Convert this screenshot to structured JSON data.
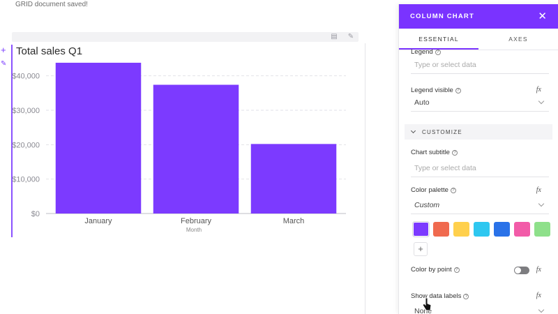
{
  "document": {
    "status": "GRID document saved!",
    "chart_title": "Total sales Q1",
    "x_axis_label": "Month"
  },
  "chart_data": {
    "type": "bar",
    "title": "Total sales Q1",
    "categories": [
      "January",
      "February",
      "March"
    ],
    "values": [
      43800,
      37400,
      20200
    ],
    "ylim": [
      0,
      45000
    ],
    "yticks": [
      0,
      10000,
      20000,
      30000,
      40000
    ],
    "ytick_labels": [
      "$0",
      "$10,000",
      "$20,000",
      "$30,000",
      "$40,000"
    ],
    "xlabel": "Month",
    "ylabel": "",
    "grid": true,
    "bar_color": "#7c3aff"
  },
  "panel": {
    "title": "COLUMN CHART",
    "close_icon": "close-icon",
    "tabs": [
      {
        "label": "ESSENTIAL",
        "active": true
      },
      {
        "label": "AXES",
        "active": false
      }
    ],
    "legend": {
      "label": "Legend",
      "placeholder": "Type or select data"
    },
    "legend_visible": {
      "label": "Legend visible",
      "value": "Auto",
      "fx": "fx"
    },
    "customize": {
      "label": "CUSTOMIZE"
    },
    "chart_subtitle": {
      "label": "Chart subtitle",
      "placeholder": "Type or select data"
    },
    "color_palette": {
      "label": "Color palette",
      "value": "Custom",
      "fx": "fx",
      "colors": [
        "#7c3aff",
        "#f06a4f",
        "#ffd04d",
        "#2ec7f0",
        "#2a72e8",
        "#f25ba8",
        "#8ee08a"
      ],
      "add_label": "+"
    },
    "color_by_point": {
      "label": "Color by point",
      "fx": "fx",
      "enabled": false
    },
    "show_data_labels": {
      "label": "Show data labels",
      "value": "None",
      "fx": "fx"
    }
  }
}
